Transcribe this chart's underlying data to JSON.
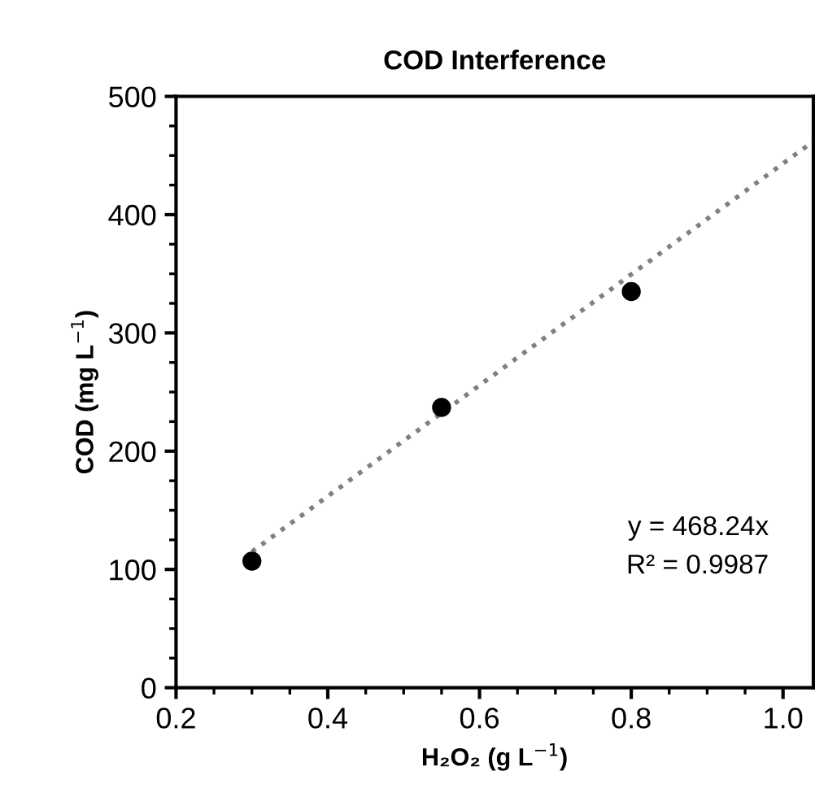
{
  "chart_data": {
    "type": "scatter",
    "title": "COD Interference",
    "xlabel": "H₂O₂ (g L$^{−1}$)",
    "ylabel": "COD (mg L$^{−1}$)",
    "xlim": [
      0.2,
      1.04
    ],
    "xticks": [
      {
        "value": 0.2,
        "label": "0.2"
      },
      {
        "value": 0.4,
        "label": "0.4"
      },
      {
        "value": 0.6,
        "label": "0.6"
      },
      {
        "value": 0.8,
        "label": "0.8"
      },
      {
        "value": 1.0,
        "label": "1.0"
      }
    ],
    "ylim": [
      0,
      500
    ],
    "yticks": [
      0,
      100,
      200,
      300,
      400,
      500
    ],
    "grid": false,
    "legend": false,
    "marker": "circle",
    "series": [
      {
        "color": "#000000",
        "x": [
          0.3,
          0.55,
          0.8
        ],
        "values": [
          107,
          237,
          335
        ]
      },
      {
        "type": "line",
        "color": "#808080",
        "line_style": "dotted",
        "marker": "none",
        "x": [
          0.3,
          1.04
        ],
        "values": [
          115,
          462
        ]
      }
    ],
    "annotations": [
      "y = 468.24x",
      "R² = 0.9987"
    ]
  }
}
